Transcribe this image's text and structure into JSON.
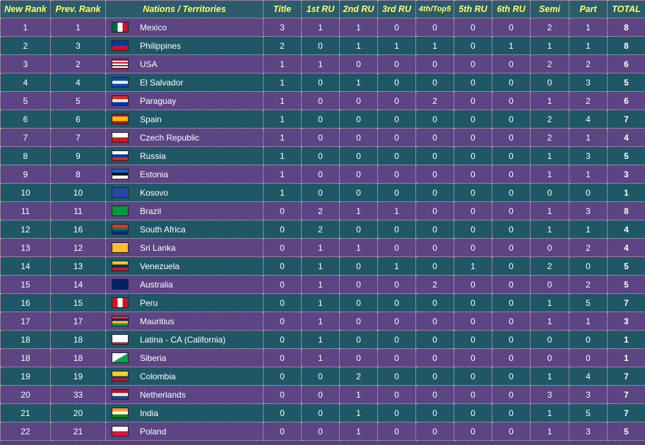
{
  "headers": [
    "New Rank",
    "Prev. Rank",
    "Nations / Territories",
    "Title",
    "1st RU",
    "2nd RU",
    "3rd RU",
    "4th/Top5",
    "5th RU",
    "6th RU",
    "Semi",
    "Part",
    "TOTAL"
  ],
  "rows": [
    {
      "new_rank": "1",
      "prev_rank": "1",
      "nation": "Mexico",
      "flag": "mexico-flag-icon",
      "title": "3",
      "ru1": "1",
      "ru2": "1",
      "ru3": "0",
      "top5": "0",
      "ru5": "0",
      "ru6": "0",
      "semi": "2",
      "part": "1",
      "total": "8"
    },
    {
      "new_rank": "2",
      "prev_rank": "3",
      "nation": "Philippines",
      "flag": "philippines-flag-icon",
      "title": "2",
      "ru1": "0",
      "ru2": "1",
      "ru3": "1",
      "top5": "1",
      "ru5": "0",
      "ru6": "1",
      "semi": "1",
      "part": "1",
      "total": "8"
    },
    {
      "new_rank": "3",
      "prev_rank": "2",
      "nation": "USA",
      "flag": "usa-flag-icon",
      "title": "1",
      "ru1": "1",
      "ru2": "0",
      "ru3": "0",
      "top5": "0",
      "ru5": "0",
      "ru6": "0",
      "semi": "2",
      "part": "2",
      "total": "6"
    },
    {
      "new_rank": "4",
      "prev_rank": "4",
      "nation": "El Salvador",
      "flag": "el-salvador-flag-icon",
      "title": "1",
      "ru1": "0",
      "ru2": "1",
      "ru3": "0",
      "top5": "0",
      "ru5": "0",
      "ru6": "0",
      "semi": "0",
      "part": "3",
      "total": "5"
    },
    {
      "new_rank": "5",
      "prev_rank": "5",
      "nation": "Paraguay",
      "flag": "paraguay-flag-icon",
      "title": "1",
      "ru1": "0",
      "ru2": "0",
      "ru3": "0",
      "top5": "2",
      "ru5": "0",
      "ru6": "0",
      "semi": "1",
      "part": "2",
      "total": "6"
    },
    {
      "new_rank": "6",
      "prev_rank": "6",
      "nation": "Spain",
      "flag": "spain-flag-icon",
      "title": "1",
      "ru1": "0",
      "ru2": "0",
      "ru3": "0",
      "top5": "0",
      "ru5": "0",
      "ru6": "0",
      "semi": "2",
      "part": "4",
      "total": "7"
    },
    {
      "new_rank": "7",
      "prev_rank": "7",
      "nation": "Czech Republic",
      "flag": "czech-republic-flag-icon",
      "title": "1",
      "ru1": "0",
      "ru2": "0",
      "ru3": "0",
      "top5": "0",
      "ru5": "0",
      "ru6": "0",
      "semi": "2",
      "part": "1",
      "total": "4"
    },
    {
      "new_rank": "8",
      "prev_rank": "9",
      "nation": "Russia",
      "flag": "russia-flag-icon",
      "title": "1",
      "ru1": "0",
      "ru2": "0",
      "ru3": "0",
      "top5": "0",
      "ru5": "0",
      "ru6": "0",
      "semi": "1",
      "part": "3",
      "total": "5"
    },
    {
      "new_rank": "9",
      "prev_rank": "8",
      "nation": "Estonia",
      "flag": "estonia-flag-icon",
      "title": "1",
      "ru1": "0",
      "ru2": "0",
      "ru3": "0",
      "top5": "0",
      "ru5": "0",
      "ru6": "0",
      "semi": "1",
      "part": "1",
      "total": "3"
    },
    {
      "new_rank": "10",
      "prev_rank": "10",
      "nation": "Kosovo",
      "flag": "kosovo-flag-icon",
      "title": "1",
      "ru1": "0",
      "ru2": "0",
      "ru3": "0",
      "top5": "0",
      "ru5": "0",
      "ru6": "0",
      "semi": "0",
      "part": "0",
      "total": "1"
    },
    {
      "new_rank": "11",
      "prev_rank": "11",
      "nation": "Brazil",
      "flag": "brazil-flag-icon",
      "title": "0",
      "ru1": "2",
      "ru2": "1",
      "ru3": "1",
      "top5": "0",
      "ru5": "0",
      "ru6": "0",
      "semi": "1",
      "part": "3",
      "total": "8"
    },
    {
      "new_rank": "12",
      "prev_rank": "16",
      "nation": "South Africa",
      "flag": "south-africa-flag-icon",
      "title": "0",
      "ru1": "2",
      "ru2": "0",
      "ru3": "0",
      "top5": "0",
      "ru5": "0",
      "ru6": "0",
      "semi": "1",
      "part": "1",
      "total": "4"
    },
    {
      "new_rank": "13",
      "prev_rank": "12",
      "nation": "Sri Lanka",
      "flag": "sri-lanka-flag-icon",
      "title": "0",
      "ru1": "1",
      "ru2": "1",
      "ru3": "0",
      "top5": "0",
      "ru5": "0",
      "ru6": "0",
      "semi": "0",
      "part": "2",
      "total": "4"
    },
    {
      "new_rank": "14",
      "prev_rank": "13",
      "nation": "Venezuela",
      "flag": "venezuela-flag-icon",
      "title": "0",
      "ru1": "1",
      "ru2": "0",
      "ru3": "1",
      "top5": "0",
      "ru5": "1",
      "ru6": "0",
      "semi": "2",
      "part": "0",
      "total": "5"
    },
    {
      "new_rank": "15",
      "prev_rank": "14",
      "nation": "Australia",
      "flag": "australia-flag-icon",
      "title": "0",
      "ru1": "1",
      "ru2": "0",
      "ru3": "0",
      "top5": "2",
      "ru5": "0",
      "ru6": "0",
      "semi": "0",
      "part": "2",
      "total": "5"
    },
    {
      "new_rank": "16",
      "prev_rank": "15",
      "nation": "Peru",
      "flag": "peru-flag-icon",
      "title": "0",
      "ru1": "1",
      "ru2": "0",
      "ru3": "0",
      "top5": "0",
      "ru5": "0",
      "ru6": "0",
      "semi": "1",
      "part": "5",
      "total": "7"
    },
    {
      "new_rank": "17",
      "prev_rank": "17",
      "nation": "Mauritius",
      "flag": "mauritius-flag-icon",
      "title": "0",
      "ru1": "1",
      "ru2": "0",
      "ru3": "0",
      "top5": "0",
      "ru5": "0",
      "ru6": "0",
      "semi": "1",
      "part": "1",
      "total": "3"
    },
    {
      "new_rank": "18",
      "prev_rank": "18",
      "nation": "Latina - CA (California)",
      "flag": "california-flag-icon",
      "title": "0",
      "ru1": "1",
      "ru2": "0",
      "ru3": "0",
      "top5": "0",
      "ru5": "0",
      "ru6": "0",
      "semi": "0",
      "part": "0",
      "total": "1"
    },
    {
      "new_rank": "18",
      "prev_rank": "18",
      "nation": "Siberia",
      "flag": "siberia-flag-icon",
      "title": "0",
      "ru1": "1",
      "ru2": "0",
      "ru3": "0",
      "top5": "0",
      "ru5": "0",
      "ru6": "0",
      "semi": "0",
      "part": "0",
      "total": "1"
    },
    {
      "new_rank": "19",
      "prev_rank": "19",
      "nation": "Colombia",
      "flag": "colombia-flag-icon",
      "title": "0",
      "ru1": "0",
      "ru2": "2",
      "ru3": "0",
      "top5": "0",
      "ru5": "0",
      "ru6": "0",
      "semi": "1",
      "part": "4",
      "total": "7"
    },
    {
      "new_rank": "20",
      "prev_rank": "33",
      "nation": "Netherlands",
      "flag": "netherlands-flag-icon",
      "title": "0",
      "ru1": "0",
      "ru2": "1",
      "ru3": "0",
      "top5": "0",
      "ru5": "0",
      "ru6": "0",
      "semi": "3",
      "part": "3",
      "total": "7"
    },
    {
      "new_rank": "21",
      "prev_rank": "20",
      "nation": "India",
      "flag": "india-flag-icon",
      "title": "0",
      "ru1": "0",
      "ru2": "1",
      "ru3": "0",
      "top5": "0",
      "ru5": "0",
      "ru6": "0",
      "semi": "1",
      "part": "5",
      "total": "7"
    },
    {
      "new_rank": "22",
      "prev_rank": "21",
      "nation": "Poland",
      "flag": "poland-flag-icon",
      "title": "0",
      "ru1": "0",
      "ru2": "1",
      "ru3": "0",
      "top5": "0",
      "ru5": "0",
      "ru6": "0",
      "semi": "1",
      "part": "3",
      "total": "5"
    }
  ]
}
